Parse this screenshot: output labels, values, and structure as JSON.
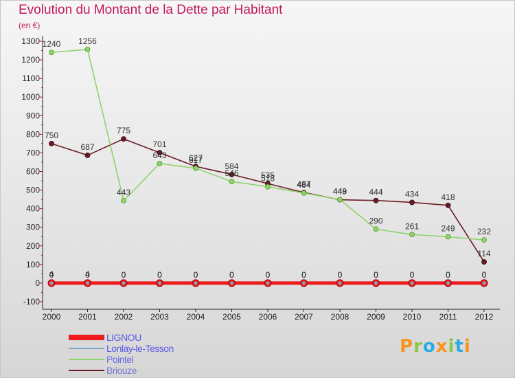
{
  "chart_data": {
    "type": "line",
    "title": "Evolution du Montant de la Dette par Habitant",
    "subtitle": "(en €)",
    "x": [
      "2000",
      "2001",
      "2002",
      "2003",
      "2004",
      "2005",
      "2006",
      "2007",
      "2008",
      "2009",
      "2010",
      "2011",
      "2012"
    ],
    "ylim": [
      -100,
      1300
    ],
    "yticks": [
      -100,
      0,
      100,
      200,
      300,
      400,
      500,
      600,
      700,
      800,
      900,
      1000,
      1100,
      1200,
      1300
    ],
    "grid": false,
    "legend_position": "bottom-left",
    "series": [
      {
        "name": "Briouze",
        "color": "#6b1c24",
        "values": [
          750,
          687,
          775,
          701,
          627,
          584,
          535,
          487,
          448,
          444,
          434,
          418,
          114
        ]
      },
      {
        "name": "Pointel",
        "color": "#8fd36b",
        "values": [
          1240,
          1256,
          443,
          643,
          617,
          546,
          518,
          484,
          449,
          290,
          261,
          249,
          232
        ]
      },
      {
        "name": "Lonlay-le-Tesson",
        "color": "#7aa6c8",
        "values": [
          4,
          4,
          0,
          0,
          0,
          0,
          0,
          0,
          0,
          0,
          0,
          0,
          0
        ]
      },
      {
        "name": "LIGNOU",
        "color": "#ee1c1c",
        "values": [
          0,
          0,
          0,
          0,
          0,
          0,
          0,
          0,
          0,
          0,
          0,
          0,
          0
        ]
      }
    ]
  },
  "brand": {
    "text": "Proxiti",
    "colors": [
      "#f7941d",
      "#8dc63f",
      "#29abe2",
      "#f7941d",
      "#8dc63f",
      "#29abe2",
      "#f7941d"
    ]
  }
}
